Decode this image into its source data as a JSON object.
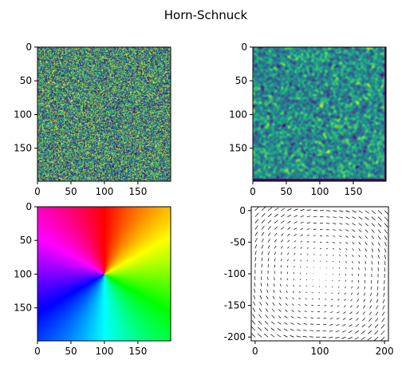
{
  "figure": {
    "title": "Horn-Schnuck"
  },
  "chart_data": [
    {
      "type": "heatmap",
      "name": "top-left-random-image",
      "image_size": [
        200,
        200
      ],
      "colormap": "viridis",
      "content": "uniform random noise",
      "xlim": [
        0,
        199
      ],
      "ylim": [
        199,
        0
      ],
      "xticks": [
        0,
        50,
        100,
        150
      ],
      "yticks": [
        0,
        50,
        100,
        150
      ]
    },
    {
      "type": "heatmap",
      "name": "top-right-warped-image",
      "image_size": [
        200,
        200
      ],
      "colormap": "viridis",
      "content": "smoothed noise field",
      "xlim": [
        0,
        199
      ],
      "ylim": [
        199,
        0
      ],
      "xticks": [
        0,
        50,
        100,
        150
      ],
      "yticks": [
        0,
        50,
        100,
        150
      ]
    },
    {
      "type": "heatmap",
      "name": "bottom-left-flow-hue",
      "image_size": [
        200,
        200
      ],
      "colormap": "hsv",
      "content": "flow direction as hue around center (100,100)",
      "center": [
        100,
        100
      ],
      "xlim": [
        0,
        199
      ],
      "ylim": [
        199,
        0
      ],
      "xticks": [
        0,
        50,
        100,
        150
      ],
      "yticks": [
        0,
        50,
        100,
        150
      ]
    },
    {
      "type": "scatter",
      "name": "bottom-right-quiver",
      "content": "rotational flow field arrows (clockwise)",
      "grid_step": 10,
      "grid_x": [
        0,
        200
      ],
      "grid_y": [
        -200,
        0
      ],
      "center": [
        100,
        -100
      ],
      "xlim": [
        -6,
        206
      ],
      "ylim": [
        -206,
        6
      ],
      "xticks": [
        0,
        100,
        200
      ],
      "yticks": [
        0,
        -50,
        -100,
        -150,
        -200
      ],
      "arrow_color": "#000000"
    }
  ]
}
